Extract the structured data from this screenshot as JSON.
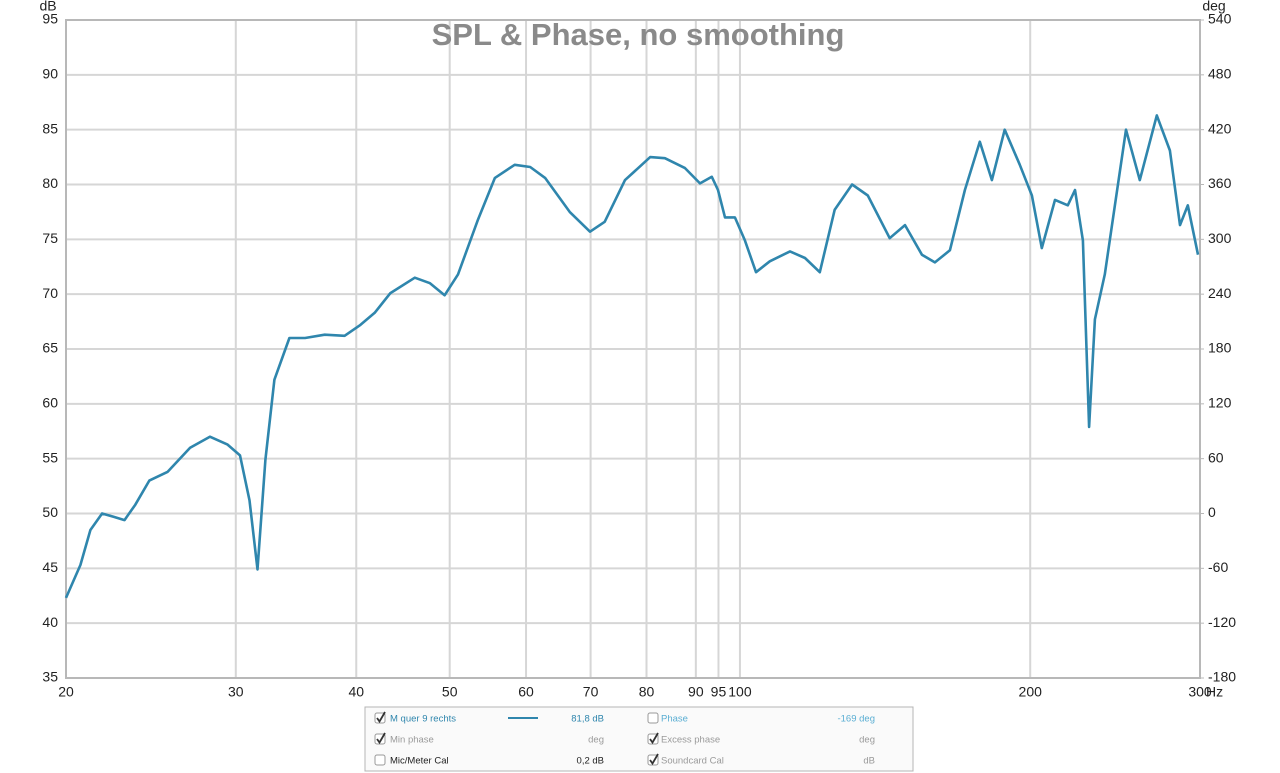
{
  "chart_data": {
    "type": "line",
    "title": "SPL & Phase, no smoothing",
    "x_label": "Hz",
    "y_label": "dB",
    "y2_label": "deg",
    "xscale": "log",
    "xlim": [
      20,
      300
    ],
    "xticks": [
      20,
      30,
      40,
      50,
      60,
      70,
      80,
      90,
      95,
      100,
      200,
      300
    ],
    "ylim": [
      35,
      95
    ],
    "yticks": [
      35,
      40,
      45,
      50,
      55,
      60,
      65,
      70,
      75,
      80,
      85,
      90,
      95
    ],
    "y2lim": [
      -180,
      540
    ],
    "y2ticks": [
      -180,
      -120,
      -60,
      0,
      60,
      120,
      180,
      240,
      300,
      360,
      420,
      480,
      540
    ],
    "grid": true,
    "x": [
      20,
      20.7,
      21.2,
      21.8,
      22.4,
      23.0,
      23.6,
      24.4,
      25.5,
      26.9,
      28.2,
      29.4,
      30.3,
      31.0,
      31.6,
      32.2,
      32.9,
      34.1,
      35.4,
      37.1,
      38.9,
      40.4,
      41.8,
      43.4,
      46.0,
      47.7,
      49.4,
      51.0,
      53.5,
      55.7,
      58.4,
      60.6,
      62.8,
      66.6,
      69.9,
      72.4,
      76.0,
      80.7,
      83.6,
      87.7,
      90.9,
      93.5,
      94.9,
      96.5,
      98.8,
      101.2,
      103.9,
      107.4,
      112.7,
      116.8,
      121.0,
      125.4,
      130.7,
      135.7,
      143.0,
      148.3,
      154.4,
      159.3,
      165.1,
      171.1,
      177.3,
      182.5,
      188.2,
      195.1,
      200.8,
      205.6,
      212.2,
      218.8,
      222.6,
      226.8,
      230.2,
      233.4,
      239.0,
      244.8,
      251.4,
      259.8,
      270.6,
      279.2,
      286.0,
      291.4,
      298.6
    ],
    "series": [
      {
        "name": "M quer 9 rechts",
        "color": "#2f86ad",
        "values": [
          42.3,
          45.3,
          48.5,
          50.0,
          49.7,
          49.4,
          50.8,
          53.0,
          53.8,
          56.0,
          57.0,
          56.3,
          55.3,
          51.2,
          44.9,
          54.9,
          62.2,
          66.0,
          66.0,
          66.3,
          66.2,
          67.2,
          68.3,
          70.1,
          71.5,
          71.0,
          69.9,
          71.8,
          76.8,
          80.6,
          81.8,
          81.6,
          80.6,
          77.5,
          75.7,
          76.6,
          80.4,
          82.5,
          82.4,
          81.5,
          80.1,
          80.7,
          79.5,
          77.0,
          77.0,
          74.9,
          72.0,
          73.0,
          73.9,
          73.3,
          72.0,
          77.7,
          80.0,
          79.0,
          75.1,
          76.3,
          73.6,
          72.9,
          74.0,
          79.5,
          83.9,
          80.4,
          85.0,
          81.8,
          79.0,
          74.2,
          78.6,
          78.1,
          79.5,
          74.9,
          57.9,
          67.7,
          71.8,
          78.1,
          85.0,
          80.4,
          86.3,
          83.1,
          76.3,
          78.1,
          73.6
        ]
      }
    ]
  },
  "legend_panel": {
    "items": [
      {
        "checked": true,
        "readout": "81,8 dB",
        "color": "#2f86ad"
      },
      {
        "checked": false,
        "label": "Phase",
        "readout": "-169 deg",
        "color": "#5aaed3"
      },
      {
        "checked": true,
        "label": "Min phase",
        "readout": "deg",
        "color": "#9a9a9a"
      },
      {
        "checked": true,
        "label": "Excess phase",
        "readout": "deg",
        "color": "#9a9a9a"
      },
      {
        "checked": false,
        "label": "Mic/Meter Cal",
        "readout": "0,2 dB",
        "color": "#222222"
      },
      {
        "checked": true,
        "label": "Soundcard Cal",
        "readout": "dB",
        "color": "#9a9a9a"
      }
    ]
  }
}
